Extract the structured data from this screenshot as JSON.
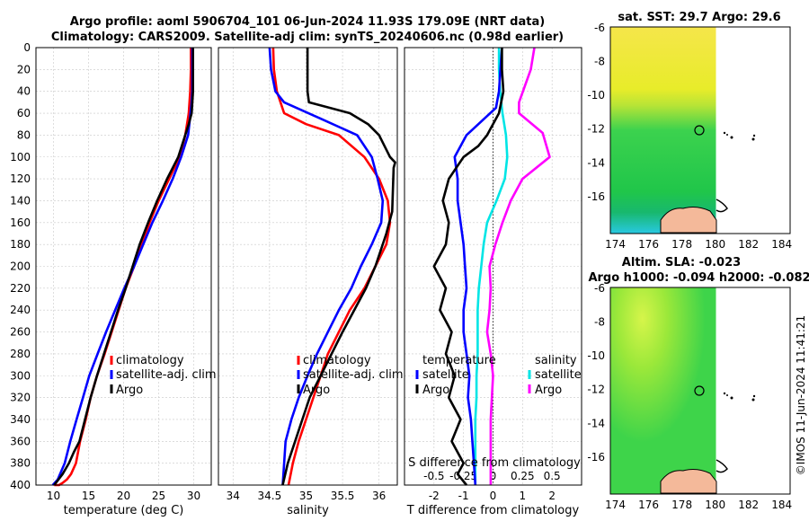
{
  "title": {
    "line1": "Argo profile: aoml 5906704_101 06-Jun-2024 11.93S 179.09E (NRT data)",
    "line2": "Climatology: CARS2009. Satellite-adj clim: synTS_20240606.nc (0.98d earlier)"
  },
  "colors": {
    "climatology": "#ff0000",
    "satellite": "#0000ff",
    "argo": "#000000",
    "sal_climatology": "#ff00ff",
    "sal_satellite": "#00e5e5"
  },
  "chart_data": [
    {
      "type": "line",
      "id": "temperature",
      "xlabel": "temperature (deg C)",
      "xlim": [
        7.5,
        32.5
      ],
      "xticks": [
        "10",
        "15",
        "20",
        "25",
        "30"
      ],
      "xtick_values": [
        10,
        15,
        20,
        25,
        30
      ],
      "ylim": [
        400,
        0
      ],
      "yticks": [
        "0",
        "20",
        "40",
        "60",
        "80",
        "100",
        "120",
        "140",
        "160",
        "180",
        "200",
        "220",
        "240",
        "260",
        "280",
        "300",
        "320",
        "340",
        "360",
        "380",
        "400"
      ],
      "ytick_values": [
        0,
        20,
        40,
        60,
        80,
        100,
        120,
        140,
        160,
        180,
        200,
        220,
        240,
        260,
        280,
        300,
        320,
        340,
        360,
        380,
        400
      ],
      "legend": [
        "climatology",
        "satellite-adj. clim",
        "Argo"
      ],
      "series": [
        {
          "name": "climatology",
          "color": "#ff0000",
          "x": [
            29.6,
            29.6,
            29.5,
            29.3,
            28.8,
            28.0,
            26.5,
            25.0,
            23.7,
            22.6,
            21.5,
            20.3,
            19.3,
            18.3,
            17.3,
            16.2,
            15.3,
            14.6,
            13.8,
            13.2,
            12.5,
            11.9,
            11.3,
            10.8,
            10.4,
            10.1
          ],
          "y": [
            0,
            20,
            40,
            60,
            80,
            100,
            120,
            140,
            160,
            180,
            200,
            220,
            240,
            260,
            280,
            300,
            320,
            340,
            360,
            380,
            390,
            395,
            398,
            400,
            400,
            400
          ]
        },
        {
          "name": "satellite-adj. clim",
          "color": "#0000ff",
          "x": [
            29.8,
            29.8,
            29.8,
            29.7,
            29.2,
            28.2,
            27.0,
            25.6,
            24.1,
            22.8,
            21.5,
            20.1,
            18.8,
            17.5,
            16.3,
            15.1,
            14.2,
            13.3,
            12.4,
            11.6,
            10.6,
            9.9
          ],
          "y": [
            0,
            20,
            40,
            50,
            80,
            100,
            120,
            140,
            160,
            180,
            200,
            220,
            240,
            260,
            280,
            300,
            320,
            340,
            360,
            380,
            395,
            400
          ]
        },
        {
          "name": "Argo",
          "color": "#000000",
          "x": [
            29.9,
            29.9,
            29.9,
            29.7,
            29.3,
            28.8,
            27.8,
            26.2,
            24.8,
            23.5,
            22.3,
            21.3,
            20.3,
            19.2,
            18.2,
            17.2,
            16.2,
            15.3,
            14.5,
            13.7,
            12.9,
            12.2,
            11.3,
            10.7,
            10.1
          ],
          "y": [
            0,
            20,
            40,
            60,
            70,
            80,
            100,
            120,
            140,
            160,
            180,
            200,
            220,
            240,
            260,
            280,
            300,
            320,
            340,
            360,
            370,
            380,
            390,
            395,
            400
          ]
        }
      ]
    },
    {
      "type": "line",
      "id": "salinity",
      "xlabel": "salinity",
      "xlim": [
        33.8,
        36.25
      ],
      "xticks": [
        "34",
        "34.5",
        "35",
        "35.5",
        "36"
      ],
      "xtick_values": [
        34,
        34.5,
        35,
        35.5,
        36
      ],
      "ylim": [
        400,
        0
      ],
      "legend": [
        "climatology",
        "satellite-adj. clim",
        "Argo"
      ],
      "series": [
        {
          "name": "climatology",
          "color": "#ff0000",
          "x": [
            34.55,
            34.56,
            34.6,
            34.7,
            35.0,
            35.45,
            35.8,
            36.0,
            36.12,
            36.15,
            36.1,
            35.95,
            35.8,
            35.6,
            35.45,
            35.3,
            35.2,
            35.1,
            35.0,
            34.9,
            34.82,
            34.76
          ],
          "y": [
            0,
            20,
            40,
            60,
            70,
            80,
            100,
            120,
            140,
            160,
            180,
            200,
            220,
            240,
            260,
            280,
            300,
            320,
            340,
            360,
            380,
            400
          ]
        },
        {
          "name": "satellite-adj. clim",
          "color": "#0000ff",
          "x": [
            34.5,
            34.52,
            34.58,
            34.7,
            35.2,
            35.7,
            35.9,
            35.98,
            36.05,
            36.03,
            35.9,
            35.75,
            35.62,
            35.45,
            35.3,
            35.15,
            35.02,
            34.9,
            34.8,
            34.72,
            34.68
          ],
          "y": [
            0,
            20,
            40,
            50,
            65,
            80,
            100,
            120,
            140,
            160,
            180,
            200,
            220,
            240,
            260,
            280,
            300,
            320,
            340,
            360,
            400
          ]
        },
        {
          "name": "Argo",
          "color": "#000000",
          "x": [
            35.02,
            35.02,
            35.02,
            35.04,
            35.6,
            35.85,
            36.0,
            36.15,
            36.22,
            36.2,
            36.18,
            36.1,
            35.95,
            35.82,
            35.66,
            35.5,
            35.35,
            35.2,
            35.05,
            34.95,
            34.85,
            34.75,
            34.68
          ],
          "y": [
            0,
            20,
            40,
            50,
            60,
            70,
            80,
            100,
            105,
            110,
            150,
            170,
            200,
            220,
            240,
            260,
            280,
            300,
            320,
            340,
            360,
            380,
            400
          ]
        }
      ]
    },
    {
      "type": "line",
      "id": "difference",
      "xlabel": "T difference from climatology",
      "xlim": [
        -3,
        3
      ],
      "xticks": [
        "-2",
        "-1",
        "0",
        "1",
        "2"
      ],
      "xtick_values": [
        -2,
        -1,
        0,
        1,
        2
      ],
      "top_axis_label": "S difference from climatology",
      "top_ticks": [
        "-0.5",
        "-0.25",
        "0",
        "0.25",
        "0.5"
      ],
      "top_tick_values": [
        -0.5,
        -0.25,
        0,
        0.25,
        0.5
      ],
      "top_lim": [
        -0.75,
        0.75
      ],
      "ylim": [
        400,
        0
      ],
      "legend_t": [
        "temperature",
        "satellite",
        "Argo"
      ],
      "legend_s": [
        "salinity",
        "satellite",
        "Argo"
      ],
      "series_t": [
        {
          "name": "satellite",
          "color": "#0000ff",
          "x": [
            0.3,
            0.25,
            0.2,
            0.1,
            -0.9,
            -1.3,
            -1.2,
            -1.2,
            -1.1,
            -1.0,
            -0.95,
            -0.9,
            -1.0,
            -1.0,
            -0.9,
            -0.8,
            -0.85,
            -0.75,
            -0.7,
            -0.65,
            -0.6
          ],
          "y": [
            0,
            20,
            40,
            55,
            80,
            100,
            120,
            140,
            160,
            180,
            200,
            220,
            240,
            260,
            280,
            300,
            320,
            340,
            360,
            380,
            400
          ]
        },
        {
          "name": "Argo",
          "color": "#000000",
          "x": [
            0.3,
            0.3,
            0.35,
            0.2,
            -0.2,
            -0.5,
            -1.0,
            -1.5,
            -1.7,
            -1.5,
            -1.6,
            -2.0,
            -1.6,
            -1.8,
            -1.4,
            -1.6,
            -1.3,
            -1.5,
            -1.1,
            -1.4,
            -1.2,
            -1.0,
            -1.2,
            -0.9
          ],
          "y": [
            0,
            20,
            40,
            60,
            80,
            90,
            100,
            120,
            140,
            160,
            180,
            200,
            220,
            240,
            260,
            280,
            300,
            320,
            340,
            360,
            370,
            380,
            390,
            400
          ]
        }
      ],
      "series_s": [
        {
          "name": "satellite",
          "color": "#00e5e5",
          "x": [
            0.05,
            0.05,
            0.06,
            0.08,
            0.11,
            0.12,
            0.1,
            0.03,
            -0.05,
            -0.08,
            -0.1,
            -0.12,
            -0.13,
            -0.13,
            -0.13,
            -0.14,
            -0.14,
            -0.15,
            -0.15,
            -0.15,
            -0.15
          ],
          "y": [
            0,
            20,
            40,
            60,
            80,
            100,
            120,
            140,
            160,
            180,
            200,
            220,
            240,
            260,
            280,
            300,
            320,
            340,
            360,
            380,
            400
          ]
        },
        {
          "name": "Argo",
          "color": "#ff00ff",
          "x": [
            0.35,
            0.32,
            0.22,
            0.22,
            0.42,
            0.48,
            0.25,
            0.15,
            0.08,
            0.02,
            -0.03,
            -0.02,
            -0.03,
            -0.05,
            -0.02,
            0.0,
            -0.01,
            -0.02,
            -0.02,
            -0.02
          ],
          "y": [
            0,
            20,
            50,
            60,
            78,
            100,
            120,
            140,
            160,
            180,
            200,
            220,
            240,
            260,
            280,
            300,
            320,
            340,
            360,
            400
          ]
        }
      ]
    }
  ],
  "maps": {
    "sst": {
      "title": "sat. SST: 29.7 Argo: 29.6",
      "xticks": [
        "174",
        "176",
        "178",
        "180",
        "182",
        "184"
      ],
      "yticks": [
        "-6",
        "-8",
        "-10",
        "-12",
        "-14",
        "-16"
      ]
    },
    "sla": {
      "title1": "Altim. SLA: -0.023",
      "title2": "Argo h1000: -0.094 h2000: -0.082",
      "xticks": [
        "174",
        "176",
        "178",
        "180",
        "182",
        "184"
      ],
      "yticks": [
        "-6",
        "-8",
        "-10",
        "-12",
        "-14",
        "-16"
      ]
    }
  },
  "footer": {
    "credit": "©IMOS 11-Jun-2024 11:41:21"
  }
}
